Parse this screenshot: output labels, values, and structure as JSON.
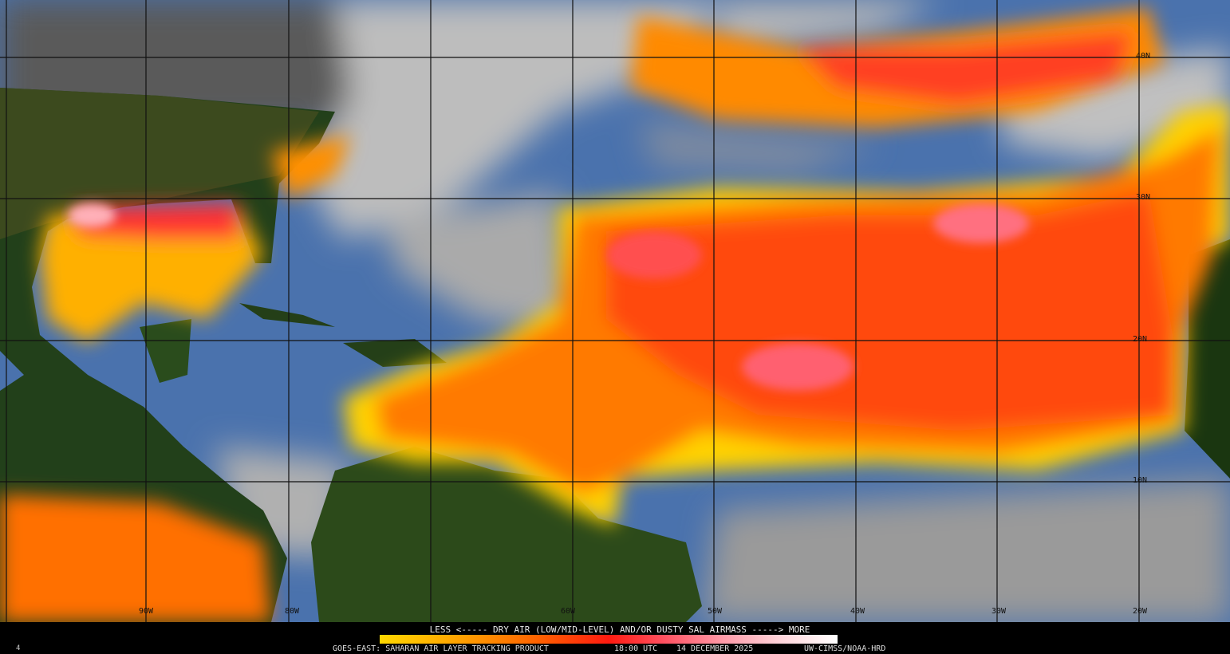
{
  "product": {
    "legend_title": "LESS <----- DRY AIR (LOW/MID-LEVEL) AND/OR DUSTY SAL AIRMASS -----> MORE",
    "satellite_product": "GOES-EAST: SAHARAN AIR LAYER TRACKING PRODUCT",
    "time": "18:00 UTC",
    "date": "14 DECEMBER 2025",
    "credit": "UW-CIMSS/NOAA-HRD",
    "frame_number": "4"
  },
  "colorbar": {
    "low_label": "LESS",
    "high_label": "MORE",
    "colors": [
      "#ffd800",
      "#ffa000",
      "#ff6000",
      "#ff1a10",
      "#ff5060",
      "#ff9aa8",
      "#ffd6dc",
      "#ffffff"
    ]
  },
  "grid": {
    "longitude_labels": [
      "90W",
      "80W",
      "60W",
      "50W",
      "40W",
      "30W",
      "20W"
    ],
    "latitude_labels": [
      "40N",
      "30N",
      "20N",
      "10N"
    ]
  },
  "colors": {
    "land": "#1e3a10",
    "ocean_moist": "#4a78b8",
    "cloud": "#c8c8c8",
    "sal_low": "#ffd800",
    "sal_mid": "#ff6a00",
    "sal_high": "#ff2a20"
  }
}
